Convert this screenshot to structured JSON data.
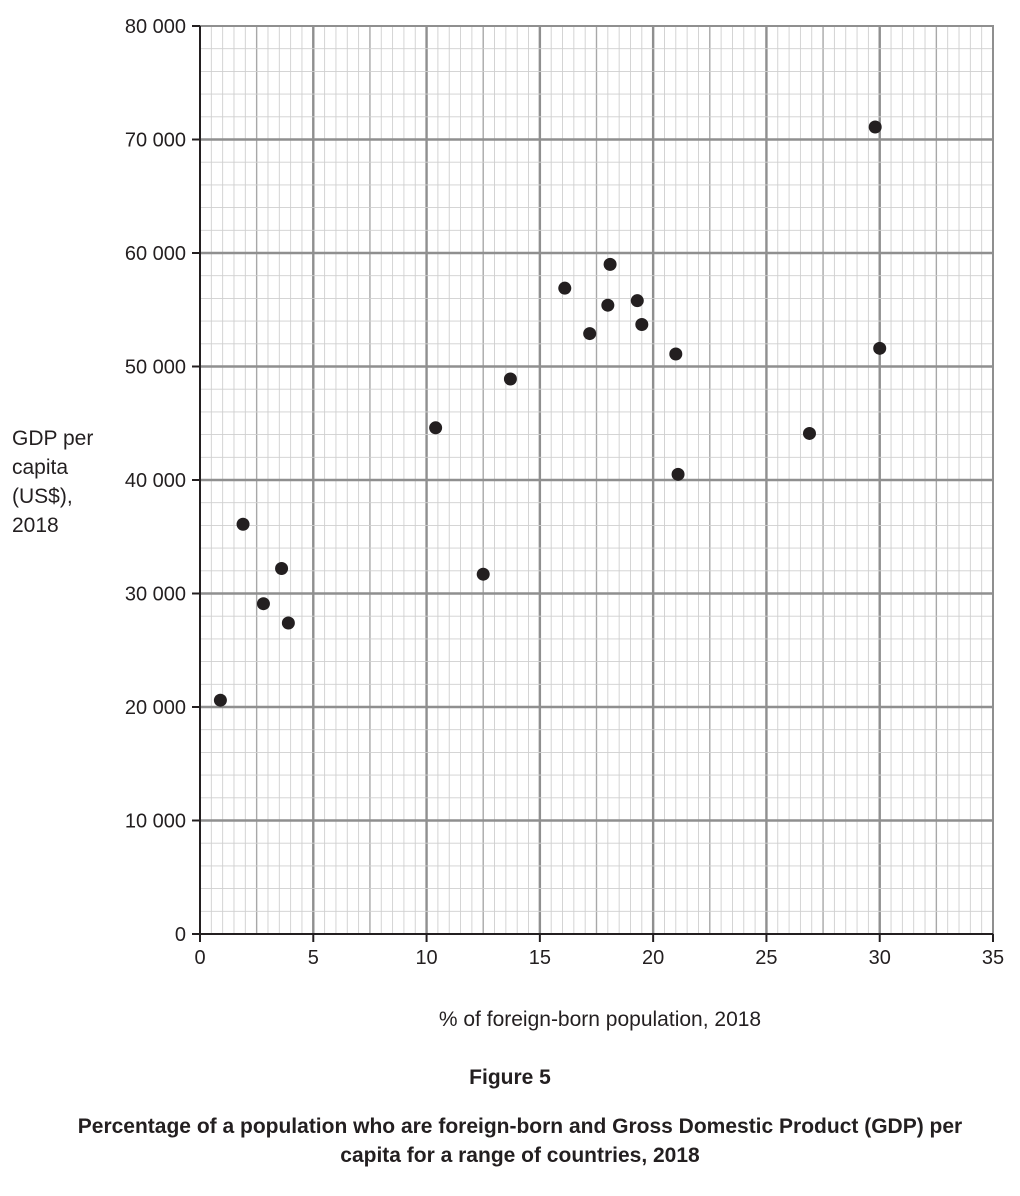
{
  "chart_data": {
    "type": "scatter",
    "ylabel": "GDP per\ncapita\n(US$),\n2018",
    "xlabel": "% of foreign-born population, 2018",
    "figure_label": "Figure 5",
    "caption": "Percentage of a population who are foreign-born and Gross Domestic Product (GDP) per capita for a range of countries, 2018",
    "xlim": [
      0,
      35
    ],
    "ylim": [
      0,
      80000
    ],
    "x_ticks": [
      0,
      5,
      10,
      15,
      20,
      25,
      30,
      35
    ],
    "x_tick_labels": [
      "0",
      "5",
      "10",
      "15",
      "20",
      "25",
      "30",
      "35"
    ],
    "y_ticks": [
      0,
      10000,
      20000,
      30000,
      40000,
      50000,
      60000,
      70000,
      80000
    ],
    "y_tick_labels": [
      "0",
      "10 000",
      "20 000",
      "30 000",
      "40 000",
      "50 000",
      "60 000",
      "70 000",
      "80 000"
    ],
    "grid": true,
    "points": [
      {
        "x": 0.9,
        "y": 20600
      },
      {
        "x": 1.9,
        "y": 36100
      },
      {
        "x": 2.8,
        "y": 29100
      },
      {
        "x": 3.6,
        "y": 32200
      },
      {
        "x": 3.9,
        "y": 27400
      },
      {
        "x": 10.4,
        "y": 44600
      },
      {
        "x": 12.5,
        "y": 31700
      },
      {
        "x": 13.7,
        "y": 48900
      },
      {
        "x": 16.1,
        "y": 56900
      },
      {
        "x": 17.2,
        "y": 52900
      },
      {
        "x": 18.0,
        "y": 55400
      },
      {
        "x": 18.1,
        "y": 59000
      },
      {
        "x": 19.3,
        "y": 55800
      },
      {
        "x": 19.5,
        "y": 53700
      },
      {
        "x": 21.0,
        "y": 51100
      },
      {
        "x": 21.1,
        "y": 40500
      },
      {
        "x": 26.9,
        "y": 44100
      },
      {
        "x": 29.8,
        "y": 71100
      },
      {
        "x": 30.0,
        "y": 51600
      }
    ]
  }
}
